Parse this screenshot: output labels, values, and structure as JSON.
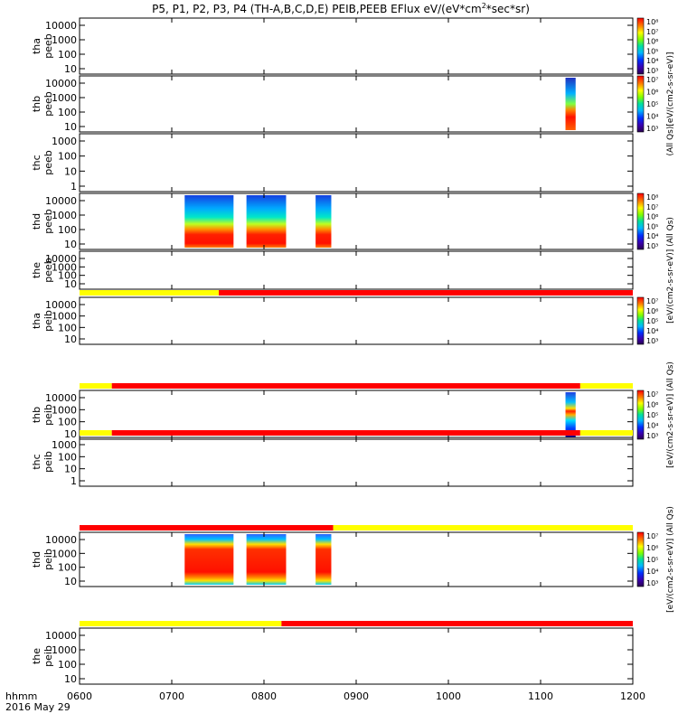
{
  "chart_data": {
    "type": "heatmap",
    "title": "P5, P1, P2, P3, P4 (TH-A,B,C,D,E) PEIB,PEEB EFlux eV/(eV*cm",
    "title_sup1": "2",
    "title_mid": "*sec*sr)",
    "x_ticks": [
      "0600",
      "0700",
      "0800",
      "0900",
      "1000",
      "1100",
      "1200"
    ],
    "x_range_hours": [
      6,
      12
    ],
    "footer": {
      "line1": "hhmm",
      "line2": "2016 May 29"
    },
    "panels": [
      {
        "name": "tha peeb",
        "probe": "tha",
        "instr": "peeb",
        "yticks": [
          "10000",
          "1000",
          "100",
          "10"
        ],
        "blocks": [],
        "bar": null
      },
      {
        "name": "thb peeb",
        "probe": "thb",
        "instr": "peeb",
        "yticks": [
          "10000",
          "1000",
          "100",
          "10"
        ],
        "blocks": [
          {
            "t0": 11.27,
            "t1": 11.38,
            "kind": "thb_e"
          }
        ],
        "bar": null
      },
      {
        "name": "thc peeb",
        "probe": "thc",
        "instr": "peeb",
        "yticks": [
          "1000",
          "100",
          "10",
          "1"
        ],
        "blocks": [],
        "bar": null
      },
      {
        "name": "thd peeb",
        "probe": "thd",
        "instr": "peeb",
        "yticks": [
          "10000",
          "1000",
          "100",
          "10"
        ],
        "blocks": [
          {
            "t0": 7.14,
            "t1": 7.67,
            "kind": "thd_e"
          },
          {
            "t0": 7.81,
            "t1": 8.24,
            "kind": "thd_e"
          },
          {
            "t0": 8.56,
            "t1": 8.73,
            "kind": "thd_e"
          }
        ],
        "bar": null
      },
      {
        "name": "the peeb",
        "probe": "the",
        "instr": "peeb",
        "yticks": [
          "10000",
          "1000",
          "100",
          "10"
        ],
        "blocks": [],
        "bar": {
          "split": 7.51,
          "left": "yellow",
          "right": "red"
        }
      },
      {
        "name": "tha peib",
        "probe": "tha",
        "instr": "peib",
        "yticks": [
          "10000",
          "1000",
          "100",
          "10"
        ],
        "blocks": [],
        "bar": {
          "split": 6.35,
          "left": "yellow",
          "right": "red",
          "split2": 11.43
        }
      },
      {
        "name": "thb peib",
        "probe": "thb",
        "instr": "peib",
        "yticks": [
          "10000",
          "1000",
          "100",
          "10"
        ],
        "blocks": [
          {
            "t0": 11.27,
            "t1": 11.38,
            "kind": "thb_i"
          }
        ],
        "bar": {
          "split": 6.35,
          "left": "yellow",
          "right": "red",
          "split2": 11.43
        }
      },
      {
        "name": "thc peib",
        "probe": "thc",
        "instr": "peib",
        "yticks": [
          "1000",
          "100",
          "10",
          "1"
        ],
        "blocks": [],
        "bar": {
          "split": 8.75,
          "left": "red",
          "right": "yellow"
        }
      },
      {
        "name": "thd peib",
        "probe": "thd",
        "instr": "peib",
        "yticks": [
          "10000",
          "1000",
          "100",
          "10"
        ],
        "blocks": [
          {
            "t0": 7.14,
            "t1": 7.67,
            "kind": "thd_i"
          },
          {
            "t0": 7.81,
            "t1": 8.24,
            "kind": "thd_i"
          },
          {
            "t0": 8.56,
            "t1": 8.73,
            "kind": "thd_i"
          }
        ],
        "bar": {
          "split": 8.19,
          "left": "yellow",
          "right": "red"
        }
      },
      {
        "name": "the peib",
        "probe": "the",
        "instr": "peib",
        "yticks": [
          "10000",
          "1000",
          "100",
          "10"
        ],
        "blocks": [],
        "bar": null
      }
    ],
    "colorbars": [
      {
        "name": "colorbar-e-a",
        "top_panel": 0,
        "span": 1,
        "ticks": [
          "10⁸",
          "10⁷",
          "10⁶",
          "10⁵",
          "10⁴",
          "10³"
        ]
      },
      {
        "name": "colorbar-e-b",
        "top_panel": 1,
        "span": 1,
        "ticks": [
          "10⁷",
          "10⁶",
          "10⁵",
          "10⁴",
          "10³"
        ]
      },
      {
        "name": "colorbar-e-d",
        "top_panel": 3,
        "span": 1,
        "ticks": [
          "10⁸",
          "10⁷",
          "10⁶",
          "10⁵",
          "10⁴",
          "10³"
        ]
      },
      {
        "name": "colorbar-i-a",
        "top_panel": 5,
        "span": 1,
        "ticks": [
          "10⁷",
          "10⁶",
          "10⁵",
          "10⁴",
          "10³"
        ]
      },
      {
        "name": "colorbar-i-b",
        "top_panel": 6,
        "span": 1,
        "ticks": [
          "10⁷",
          "10⁶",
          "10⁵",
          "10⁴",
          "10³"
        ]
      },
      {
        "name": "colorbar-i-d",
        "top_panel": 8,
        "span": 1,
        "ticks": [
          "10⁷",
          "10⁶",
          "10⁵",
          "10⁴",
          "10³"
        ]
      }
    ],
    "side_labels": [
      {
        "name": "units-label-e-1",
        "text": "(All Qs)[eV/(cm2-s-sr-eV)]",
        "panel": 1
      },
      {
        "name": "units-label-e-2",
        "text": "[eV/(cm2-s-sr-eV)] (All Qs)",
        "panel": 4
      },
      {
        "name": "units-label-i-1",
        "text": "[eV/(cm2-s-sr-eV)] (All Qs)",
        "panel": 6
      },
      {
        "name": "units-label-i-2",
        "text": "[eV/(cm2-s-sr-eV)] (All Qs)",
        "panel": 8
      }
    ],
    "colors": {
      "yellow": "#ffff00",
      "red": "#ff0000",
      "frame": "#000000"
    }
  }
}
